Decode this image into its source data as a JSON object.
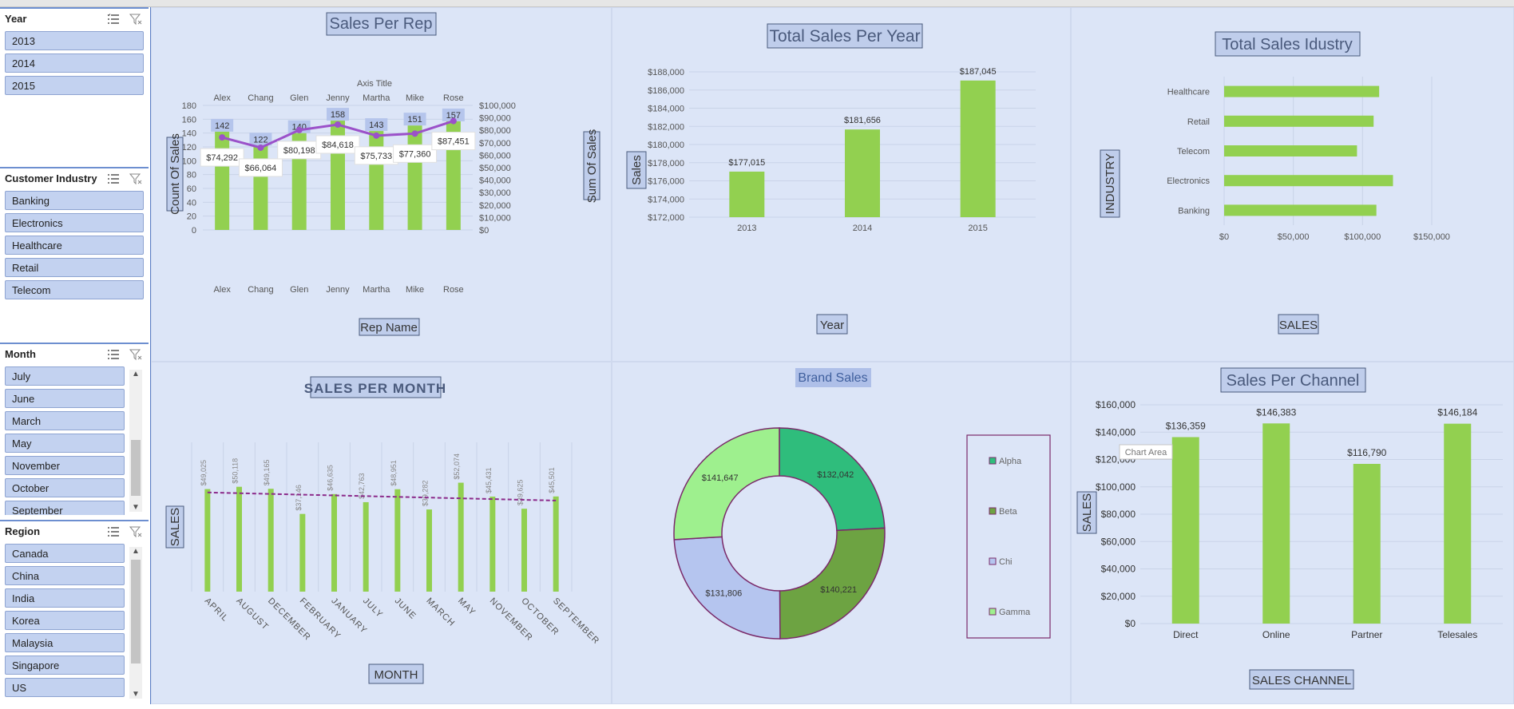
{
  "slicers": {
    "year": {
      "title": "Year",
      "items": [
        "2013",
        "2014",
        "2015"
      ]
    },
    "industry": {
      "title": "Customer Industry",
      "items": [
        "Banking",
        "Electronics",
        "Healthcare",
        "Retail",
        "Telecom"
      ]
    },
    "month": {
      "title": "Month",
      "items": [
        "July",
        "June",
        "March",
        "May",
        "November",
        "October",
        "September"
      ]
    },
    "region": {
      "title": "Region",
      "items": [
        "Canada",
        "China",
        "India",
        "Korea",
        "Malaysia",
        "Singapore",
        "US"
      ]
    }
  },
  "colors": {
    "bar": "#92d050",
    "line": "#9b51c9",
    "dash": "#8b2a8a",
    "donut_alpha": "#2fbd7c",
    "donut_beta": "#6da342",
    "donut_chi": "#b5c5ef",
    "donut_gamma": "#9ef08e"
  },
  "chart_data": [
    {
      "id": "sales_per_rep",
      "type": "bar",
      "title": "Sales Per Rep",
      "categories": [
        "Alex",
        "Chang",
        "Glen",
        "Jenny",
        "Martha",
        "Mike",
        "Rose"
      ],
      "top_axis_title": "Axis Title",
      "xlabel": "Rep Name",
      "ylabel": "Count Of Sales",
      "y2label": "Sum Of Sales",
      "ylim": [
        0,
        180
      ],
      "y2lim": [
        0,
        100000
      ],
      "yticks": [
        "0",
        "20",
        "40",
        "60",
        "80",
        "100",
        "120",
        "140",
        "160",
        "180"
      ],
      "y2ticks": [
        "$0",
        "$10,000",
        "$20,000",
        "$30,000",
        "$40,000",
        "$50,000",
        "$60,000",
        "$70,000",
        "$80,000",
        "$90,000",
        "$100,000"
      ],
      "series": [
        {
          "name": "Count Of Sales",
          "kind": "bar",
          "values": [
            142,
            122,
            140,
            158,
            143,
            151,
            157
          ],
          "labels": [
            "142",
            "122",
            "140",
            "158",
            "143",
            "151",
            "157"
          ]
        },
        {
          "name": "Sum Of Sales",
          "kind": "line",
          "values": [
            74292,
            66064,
            80198,
            84618,
            75733,
            77360,
            87451
          ],
          "labels": [
            "$74,292",
            "$66,064",
            "$80,198",
            "$84,618",
            "$75,733",
            "$77,360",
            "$87,451"
          ]
        }
      ]
    },
    {
      "id": "total_sales_per_year",
      "type": "bar",
      "title": "Total Sales Per Year",
      "categories": [
        "2013",
        "2014",
        "2015"
      ],
      "values": [
        177015,
        181656,
        187045
      ],
      "labels": [
        "$177,015",
        "$181,656",
        "$187,045"
      ],
      "xlabel": "Year",
      "ylabel": "Sales",
      "ylim": [
        172000,
        188000
      ],
      "yticks": [
        "$172,000",
        "$174,000",
        "$176,000",
        "$178,000",
        "$180,000",
        "$182,000",
        "$184,000",
        "$186,000",
        "$188,000"
      ]
    },
    {
      "id": "total_sales_industry",
      "type": "bar",
      "orientation": "horizontal",
      "title": "Total Sales Idustry",
      "categories": [
        "Healthcare",
        "Retail",
        "Telecom",
        "Electronics",
        "Banking"
      ],
      "values": [
        112000,
        108000,
        96000,
        122000,
        110000
      ],
      "xlabel": "SALES",
      "ylabel": "INDUSTRY",
      "xlim": [
        0,
        150000
      ],
      "xticks": [
        "$0",
        "$50,000",
        "$100,000",
        "$150,000"
      ]
    },
    {
      "id": "sales_per_month",
      "type": "bar",
      "title": "SALES PER MONTH",
      "categories": [
        "APRIL",
        "AUGUST",
        "DECEMBER",
        "FEBRUARY",
        "JANUARY",
        "JULY",
        "JUNE",
        "MARCH",
        "MAY",
        "NOVEMBER",
        "OCTOBER",
        "SEPTEMBER"
      ],
      "values": [
        49025,
        50118,
        49165,
        37146,
        46635,
        42763,
        48951,
        39282,
        52074,
        45431,
        39625,
        45501
      ],
      "labels": [
        "$49,025",
        "$50,118",
        "$49,165",
        "$37,146",
        "$46,635",
        "$42,763",
        "$48,951",
        "$39,282",
        "$52,074",
        "$45,431",
        "$39,625",
        "$45,501"
      ],
      "trendline": "linear",
      "xlabel": "MONTH",
      "ylabel": "SALES"
    },
    {
      "id": "brand_sales",
      "type": "pie",
      "subtype": "donut",
      "title": "Brand Sales",
      "categories": [
        "Alpha",
        "Beta",
        "Chi",
        "Gamma"
      ],
      "values": [
        132042,
        140221,
        131806,
        141647
      ],
      "labels": [
        "$132,042",
        "$140,221",
        "$131,806",
        "$141,647"
      ],
      "legend": "right"
    },
    {
      "id": "sales_per_channel",
      "type": "bar",
      "title": "Sales Per Channel",
      "categories": [
        "Direct",
        "Online",
        "Partner",
        "Telesales"
      ],
      "values": [
        136359,
        146383,
        116790,
        146184
      ],
      "labels": [
        "$136,359",
        "$146,383",
        "$116,790",
        "$146,184"
      ],
      "xlabel": "SALES CHANNEL",
      "ylabel": "SALES",
      "ylim": [
        0,
        160000
      ],
      "yticks": [
        "$0",
        "$20,000",
        "$40,000",
        "$60,000",
        "$80,000",
        "$100,000",
        "$120,000",
        "$140,000",
        "$160,000"
      ],
      "tooltip": "Chart Area"
    }
  ]
}
